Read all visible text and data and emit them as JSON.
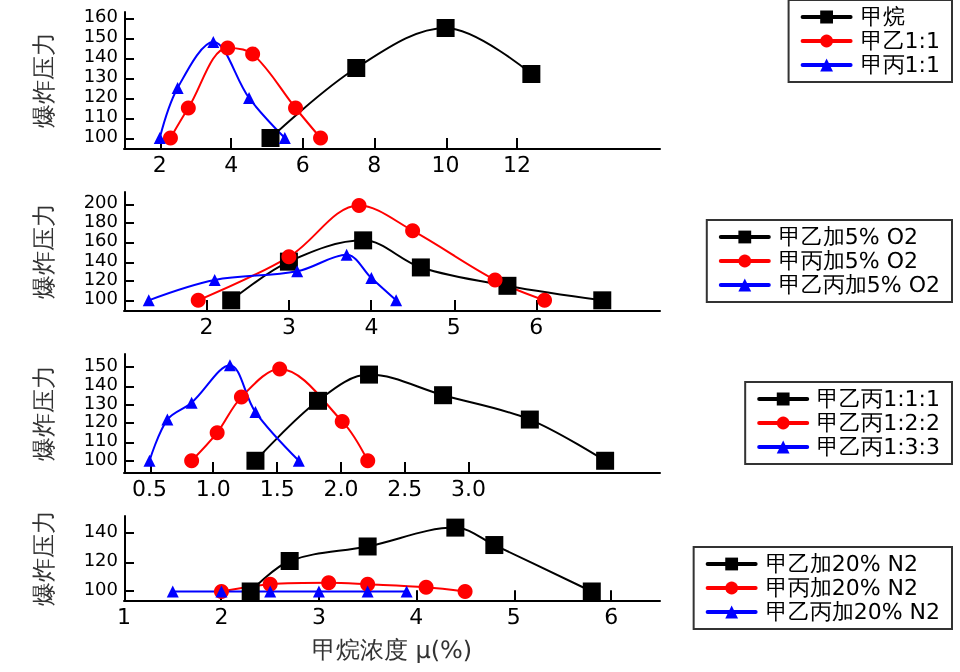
{
  "chart_data": [
    {
      "type": "line",
      "ylabel": "爆炸压力",
      "xlim": [
        1,
        16
      ],
      "xticks": [
        2,
        4,
        6,
        8,
        10,
        12
      ],
      "ylim": [
        95,
        163
      ],
      "yticks": [
        100,
        110,
        120,
        130,
        140,
        150,
        160
      ],
      "grid": false,
      "legend": "top right",
      "line_style": "solid",
      "series": [
        {
          "name": "甲烷",
          "color": "#000000",
          "marker": "square",
          "x": [
            5.1,
            7.5,
            10,
            12.4
          ],
          "values": [
            100,
            135,
            155,
            132
          ]
        },
        {
          "name": "甲乙1:1",
          "color": "#ff0000",
          "marker": "circle",
          "x": [
            2.3,
            2.8,
            3.9,
            4.6,
            5.8,
            6.5
          ],
          "values": [
            100,
            115,
            145,
            142,
            115,
            100
          ]
        },
        {
          "name": "甲丙1:1",
          "color": "#0000ff",
          "marker": "triangle",
          "x": [
            2,
            2.5,
            3.5,
            4.5,
            5.5
          ],
          "values": [
            100,
            125,
            148,
            120,
            100
          ]
        }
      ]
    },
    {
      "type": "line",
      "ylabel": "爆炸压力",
      "xlim": [
        1,
        7.5
      ],
      "xticks": [
        2,
        3,
        4,
        5,
        6
      ],
      "ylim": [
        90,
        212
      ],
      "yticks": [
        100,
        120,
        140,
        160,
        180,
        200
      ],
      "grid": false,
      "legend": "right",
      "line_style": "solid",
      "series": [
        {
          "name": "甲乙加5% O2",
          "color": "#000000",
          "marker": "square",
          "x": [
            2.3,
            3,
            3.9,
            4.6,
            5.65,
            6.8
          ],
          "values": [
            100,
            140,
            162,
            134,
            115,
            100
          ]
        },
        {
          "name": "甲丙加5% O2",
          "color": "#ff0000",
          "marker": "circle",
          "x": [
            1.9,
            3,
            3.85,
            4.5,
            5.5,
            6.1
          ],
          "values": [
            100,
            145,
            198,
            172,
            121,
            100
          ]
        },
        {
          "name": "甲乙丙加5% O2",
          "color": "#0000ff",
          "marker": "triangle",
          "x": [
            1.3,
            2.1,
            3.1,
            3.7,
            4,
            4.3
          ],
          "values": [
            100,
            121,
            130,
            147,
            123,
            100
          ]
        }
      ]
    },
    {
      "type": "line",
      "ylabel": "爆炸压力",
      "xlim": [
        0.3,
        4.5
      ],
      "xticks": [
        0.5,
        {
          "value": 1,
          "label": "1.0"
        },
        1.5,
        {
          "value": 2,
          "label": "2.0"
        },
        2.5,
        {
          "value": 3,
          "label": "3.0"
        }
      ],
      "ylim": [
        94,
        157
      ],
      "yticks": [
        100,
        110,
        120,
        130,
        140,
        150
      ],
      "grid": false,
      "legend": "right",
      "line_style": "solid",
      "series": [
        {
          "name": "甲乙丙1:1:1",
          "color": "#000000",
          "marker": "square",
          "x": [
            1.33,
            1.82,
            2.22,
            2.8,
            3.48,
            4.07
          ],
          "values": [
            100,
            132,
            146,
            135,
            122,
            100
          ]
        },
        {
          "name": "甲乙丙1:2:2",
          "color": "#ff0000",
          "marker": "circle",
          "x": [
            0.83,
            1.03,
            1.22,
            1.52,
            2.01,
            2.21
          ],
          "values": [
            100,
            115,
            134,
            149,
            121,
            100
          ]
        },
        {
          "name": "甲乙丙1:3:3",
          "color": "#0000ff",
          "marker": "triangle",
          "x": [
            0.5,
            0.64,
            0.83,
            1.13,
            1.33,
            1.67
          ],
          "values": [
            100,
            122,
            131,
            151,
            126,
            100
          ]
        }
      ]
    },
    {
      "type": "line",
      "ylabel": "爆炸压力",
      "xlabel": "甲烷浓度 μ(%)",
      "xlim": [
        1,
        6.5
      ],
      "xticks": [
        1,
        2,
        3,
        4,
        5,
        6
      ],
      "ylim": [
        94,
        152
      ],
      "yticks": [
        100,
        120,
        140
      ],
      "grid": false,
      "legend": "right",
      "line_style": "solid",
      "series": [
        {
          "name": "甲乙加20% N2",
          "color": "#000000",
          "marker": "square",
          "x": [
            2.3,
            2.7,
            3.5,
            4.4,
            4.8,
            5.8
          ],
          "values": [
            100,
            121,
            131,
            144,
            132,
            100
          ]
        },
        {
          "name": "甲丙加20% N2",
          "color": "#ff0000",
          "marker": "circle",
          "x": [
            2,
            2.5,
            3.1,
            3.5,
            4.1,
            4.5
          ],
          "values": [
            100,
            105,
            106,
            105,
            103,
            100
          ]
        },
        {
          "name": "甲乙丙加20% N2",
          "color": "#0000ff",
          "marker": "triangle",
          "x": [
            1.5,
            2,
            2.5,
            3,
            3.5,
            3.9
          ],
          "values": [
            100,
            100,
            100,
            100,
            100,
            100
          ]
        }
      ]
    }
  ]
}
